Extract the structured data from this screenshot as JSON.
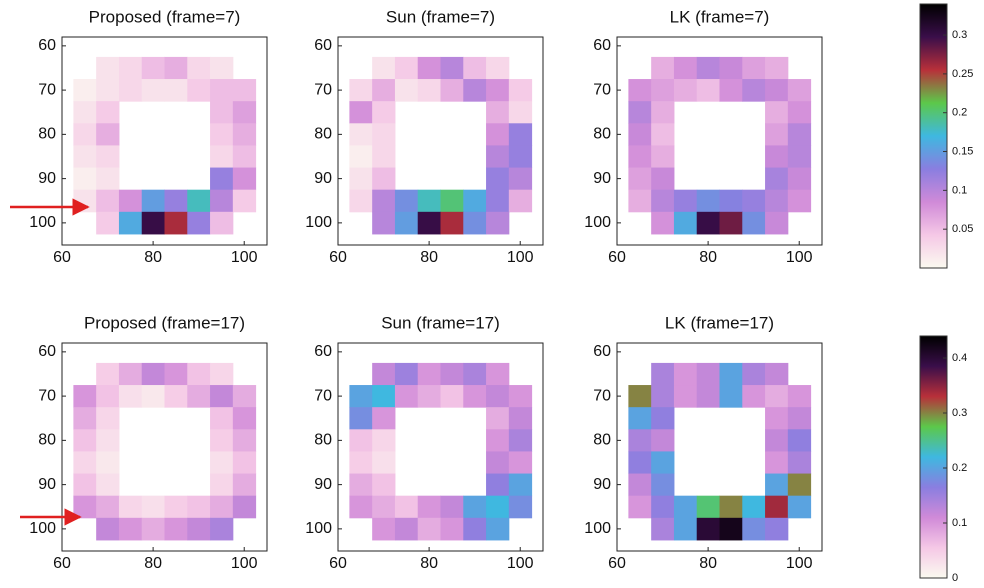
{
  "chart_data": [
    {
      "type": "heatmap",
      "title": "Proposed (frame=7)",
      "x": [
        65,
        70,
        75,
        80,
        85,
        90,
        95,
        100
      ],
      "y": [
        65,
        70,
        75,
        80,
        85,
        90,
        95,
        100
      ],
      "z": [
        [
          null,
          0.02,
          0.03,
          0.05,
          0.06,
          0.03,
          0.02,
          null
        ],
        [
          0.01,
          0.02,
          0.03,
          0.02,
          0.02,
          0.04,
          0.05,
          0.05
        ],
        [
          0.02,
          0.04,
          null,
          null,
          null,
          null,
          0.05,
          0.07
        ],
        [
          0.03,
          0.06,
          null,
          null,
          null,
          null,
          0.04,
          0.06
        ],
        [
          0.02,
          0.03,
          null,
          null,
          null,
          null,
          0.03,
          0.05
        ],
        [
          0.01,
          0.02,
          null,
          null,
          null,
          null,
          0.12,
          0.08
        ],
        [
          0.02,
          0.05,
          0.08,
          0.15,
          0.12,
          0.18,
          0.1,
          0.04
        ],
        [
          null,
          0.04,
          0.16,
          0.3,
          0.26,
          0.12,
          0.05,
          null
        ]
      ],
      "xlim": [
        60,
        105
      ],
      "ylim": [
        58,
        105
      ],
      "xticks": [
        60,
        80,
        100
      ],
      "yticks": [
        60,
        70,
        80,
        90,
        100
      ]
    },
    {
      "type": "heatmap",
      "title": "Sun (frame=7)",
      "x": [
        65,
        70,
        75,
        80,
        85,
        90,
        95,
        100
      ],
      "y": [
        65,
        70,
        75,
        80,
        85,
        90,
        95,
        100
      ],
      "z": [
        [
          null,
          0.02,
          0.04,
          0.08,
          0.1,
          0.05,
          0.03,
          null
        ],
        [
          0.03,
          0.06,
          0.02,
          0.03,
          0.06,
          0.1,
          0.08,
          0.04
        ],
        [
          0.08,
          0.04,
          null,
          null,
          null,
          null,
          0.06,
          0.03
        ],
        [
          0.02,
          0.03,
          null,
          null,
          null,
          null,
          0.08,
          0.12
        ],
        [
          0.01,
          0.03,
          null,
          null,
          null,
          null,
          0.1,
          0.12
        ],
        [
          0.02,
          0.05,
          null,
          null,
          null,
          null,
          0.12,
          0.1
        ],
        [
          0.03,
          0.1,
          0.14,
          0.18,
          0.2,
          0.16,
          0.12,
          0.06
        ],
        [
          null,
          0.1,
          0.15,
          0.3,
          0.26,
          0.14,
          0.1,
          null
        ]
      ],
      "xlim": [
        60,
        105
      ],
      "ylim": [
        58,
        105
      ],
      "xticks": [
        60,
        80,
        100
      ],
      "yticks": [
        60,
        70,
        80,
        90,
        100
      ]
    },
    {
      "type": "heatmap",
      "title": "LK (frame=7)",
      "x": [
        65,
        70,
        75,
        80,
        85,
        90,
        95,
        100
      ],
      "y": [
        65,
        70,
        75,
        80,
        85,
        90,
        95,
        100
      ],
      "z": [
        [
          null,
          0.06,
          0.08,
          0.1,
          0.09,
          0.07,
          0.06,
          null
        ],
        [
          0.08,
          0.07,
          0.06,
          0.05,
          0.08,
          0.1,
          0.09,
          0.07
        ],
        [
          0.1,
          0.06,
          null,
          null,
          null,
          null,
          0.06,
          0.08
        ],
        [
          0.09,
          0.05,
          null,
          null,
          null,
          null,
          0.07,
          0.1
        ],
        [
          0.08,
          0.06,
          null,
          null,
          null,
          null,
          0.09,
          0.1
        ],
        [
          0.07,
          0.09,
          null,
          null,
          null,
          null,
          0.11,
          0.09
        ],
        [
          0.06,
          0.1,
          0.12,
          0.14,
          0.13,
          0.12,
          0.1,
          0.08
        ],
        [
          null,
          0.08,
          0.16,
          0.3,
          0.28,
          0.14,
          0.09,
          null
        ]
      ],
      "xlim": [
        60,
        105
      ],
      "ylim": [
        58,
        105
      ],
      "xticks": [
        60,
        80,
        100
      ],
      "yticks": [
        60,
        70,
        80,
        90,
        100
      ]
    },
    {
      "type": "heatmap",
      "title": "Proposed (frame=17)",
      "x": [
        65,
        70,
        75,
        80,
        85,
        90,
        95,
        100
      ],
      "y": [
        65,
        70,
        75,
        80,
        85,
        90,
        95,
        100
      ],
      "z": [
        [
          null,
          0.05,
          0.08,
          0.12,
          0.1,
          0.06,
          0.04,
          null
        ],
        [
          0.1,
          0.06,
          0.03,
          0.02,
          0.05,
          0.08,
          0.12,
          0.08
        ],
        [
          0.08,
          0.04,
          null,
          null,
          null,
          null,
          0.06,
          0.1
        ],
        [
          0.06,
          0.03,
          null,
          null,
          null,
          null,
          0.05,
          0.08
        ],
        [
          0.04,
          0.02,
          null,
          null,
          null,
          null,
          0.03,
          0.06
        ],
        [
          0.06,
          0.03,
          null,
          null,
          null,
          null,
          0.04,
          0.08
        ],
        [
          0.1,
          0.08,
          0.04,
          0.03,
          0.05,
          0.06,
          0.08,
          0.12
        ],
        [
          null,
          0.12,
          0.1,
          0.08,
          0.1,
          0.12,
          0.14,
          null
        ]
      ],
      "xlim": [
        60,
        105
      ],
      "ylim": [
        58,
        105
      ],
      "xticks": [
        60,
        80,
        100
      ],
      "yticks": [
        60,
        70,
        80,
        90,
        100
      ]
    },
    {
      "type": "heatmap",
      "title": "Sun (frame=17)",
      "x": [
        65,
        70,
        75,
        80,
        85,
        90,
        95,
        100
      ],
      "y": [
        65,
        70,
        75,
        80,
        85,
        90,
        95,
        100
      ],
      "z": [
        [
          null,
          0.12,
          0.15,
          0.1,
          0.12,
          0.14,
          0.1,
          null
        ],
        [
          0.2,
          0.22,
          0.1,
          0.08,
          0.06,
          0.1,
          0.12,
          0.1
        ],
        [
          0.18,
          0.1,
          null,
          null,
          null,
          null,
          0.08,
          0.12
        ],
        [
          0.06,
          0.04,
          null,
          null,
          null,
          null,
          0.1,
          0.14
        ],
        [
          0.05,
          0.03,
          null,
          null,
          null,
          null,
          0.12,
          0.1
        ],
        [
          0.08,
          0.06,
          null,
          null,
          null,
          null,
          0.16,
          0.2
        ],
        [
          0.1,
          0.08,
          0.06,
          0.1,
          0.12,
          0.2,
          0.22,
          0.18
        ],
        [
          null,
          0.1,
          0.12,
          0.08,
          0.1,
          0.16,
          0.2,
          null
        ]
      ],
      "xlim": [
        60,
        105
      ],
      "ylim": [
        58,
        105
      ],
      "xticks": [
        60,
        80,
        100
      ],
      "yticks": [
        60,
        70,
        80,
        90,
        100
      ]
    },
    {
      "type": "heatmap",
      "title": "LK (frame=17)",
      "x": [
        65,
        70,
        75,
        80,
        85,
        90,
        95,
        100
      ],
      "y": [
        65,
        70,
        75,
        80,
        85,
        90,
        95,
        100
      ],
      "z": [
        [
          null,
          0.14,
          0.1,
          0.12,
          0.2,
          0.14,
          0.12,
          null
        ],
        [
          0.3,
          0.14,
          0.1,
          0.12,
          0.2,
          0.1,
          0.08,
          0.1
        ],
        [
          0.2,
          0.16,
          null,
          null,
          null,
          null,
          0.1,
          0.12
        ],
        [
          0.14,
          0.12,
          null,
          null,
          null,
          null,
          0.12,
          0.16
        ],
        [
          0.16,
          0.2,
          null,
          null,
          null,
          null,
          0.1,
          0.14
        ],
        [
          0.12,
          0.18,
          null,
          null,
          null,
          null,
          0.2,
          0.3
        ],
        [
          0.1,
          0.16,
          0.2,
          0.26,
          0.3,
          0.22,
          0.34,
          0.2
        ],
        [
          null,
          0.14,
          0.2,
          0.4,
          0.42,
          0.18,
          0.16,
          null
        ]
      ],
      "xlim": [
        60,
        105
      ],
      "ylim": [
        58,
        105
      ],
      "xticks": [
        60,
        80,
        100
      ],
      "yticks": [
        60,
        70,
        80,
        90,
        100
      ]
    },
    {
      "type": "colorbar",
      "clim": [
        0,
        0.34
      ],
      "ticks": [
        0.05,
        0.1,
        0.15,
        0.2,
        0.25,
        0.3
      ],
      "colormap": [
        "#fbfaf0",
        "#f5c8e6",
        "#d08ad8",
        "#8a7ee0",
        "#3fb8e0",
        "#5cc84a",
        "#b8303a",
        "#3a0e4a",
        "#000000"
      ]
    },
    {
      "type": "colorbar",
      "clim": [
        0,
        0.44
      ],
      "ticks": [
        0,
        0.1,
        0.2,
        0.3,
        0.4
      ],
      "colormap": [
        "#fbfaf0",
        "#f5c8e6",
        "#d08ad8",
        "#8a7ee0",
        "#3fb8e0",
        "#5cc84a",
        "#b8303a",
        "#3a0e4a",
        "#000000"
      ]
    }
  ]
}
